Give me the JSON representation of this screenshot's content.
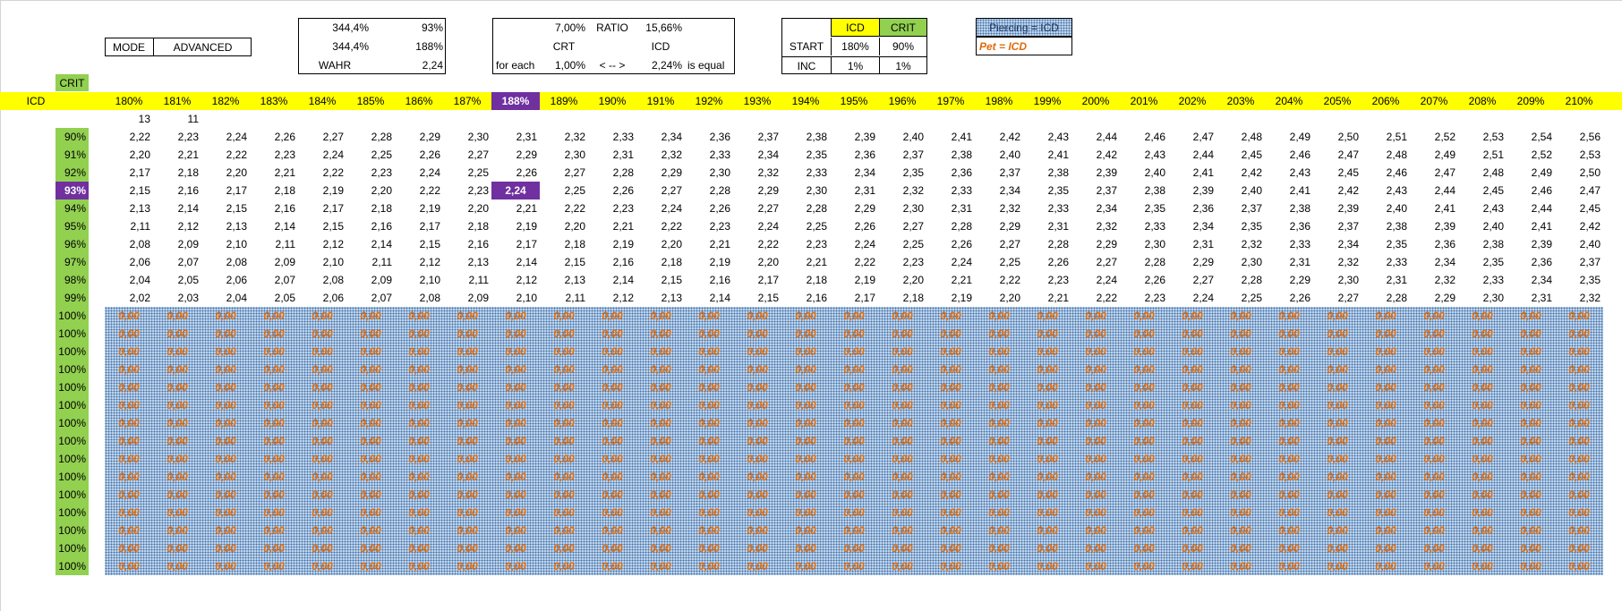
{
  "header": {
    "mode_label": "MODE",
    "mode_value": "ADVANCED",
    "stat_a1": "344,4%",
    "stat_a2": "344,4%",
    "stat_a3_label": "WAHR",
    "stat_b1": "93%",
    "stat_b2": "188%",
    "stat_b3": "2,24",
    "ratio_crt_val": "7,00%",
    "ratio_label": "RATIO",
    "ratio_icd_val": "15,66%",
    "crt_label": "CRT",
    "icd_label": "ICD",
    "for_each": "for each",
    "for_each_val": "1,00%",
    "arrow": "< -- >",
    "equal_val": "2,24%",
    "is_equal": "is equal",
    "icd_head": "ICD",
    "crit_head": "CRIT",
    "start_label": "START",
    "start_icd": "180%",
    "start_crit": "90%",
    "inc_label": "INC",
    "inc_icd": "1%",
    "inc_crit": "1%",
    "piercing_legend": "Piercing = ICD",
    "pet_legend": "Pet = ICD"
  },
  "grid": {
    "crit_title": "CRIT",
    "icd_title": "ICD",
    "icd_columns": [
      "180%",
      "181%",
      "182%",
      "183%",
      "184%",
      "185%",
      "186%",
      "187%",
      "188%",
      "189%",
      "190%",
      "191%",
      "192%",
      "193%",
      "194%",
      "195%",
      "196%",
      "197%",
      "198%",
      "199%",
      "200%",
      "201%",
      "202%",
      "203%",
      "204%",
      "205%",
      "206%",
      "207%",
      "208%",
      "209%",
      "210%"
    ],
    "highlight_col": 8,
    "highlight_row": 3,
    "counter_1": "13",
    "counter_2": "11",
    "crit_rows": [
      "90%",
      "91%",
      "92%",
      "93%",
      "94%",
      "95%",
      "96%",
      "97%",
      "98%",
      "99%"
    ],
    "values": [
      [
        "2,22",
        "2,23",
        "2,24",
        "2,26",
        "2,27",
        "2,28",
        "2,29",
        "2,30",
        "2,31",
        "2,32",
        "2,33",
        "2,34",
        "2,36",
        "2,37",
        "2,38",
        "2,39",
        "2,40",
        "2,41",
        "2,42",
        "2,43",
        "2,44",
        "2,46",
        "2,47",
        "2,48",
        "2,49",
        "2,50",
        "2,51",
        "2,52",
        "2,53",
        "2,54",
        "2,56"
      ],
      [
        "2,20",
        "2,21",
        "2,22",
        "2,23",
        "2,24",
        "2,25",
        "2,26",
        "2,27",
        "2,29",
        "2,30",
        "2,31",
        "2,32",
        "2,33",
        "2,34",
        "2,35",
        "2,36",
        "2,37",
        "2,38",
        "2,40",
        "2,41",
        "2,42",
        "2,43",
        "2,44",
        "2,45",
        "2,46",
        "2,47",
        "2,48",
        "2,49",
        "2,51",
        "2,52",
        "2,53"
      ],
      [
        "2,17",
        "2,18",
        "2,20",
        "2,21",
        "2,22",
        "2,23",
        "2,24",
        "2,25",
        "2,26",
        "2,27",
        "2,28",
        "2,29",
        "2,30",
        "2,32",
        "2,33",
        "2,34",
        "2,35",
        "2,36",
        "2,37",
        "2,38",
        "2,39",
        "2,40",
        "2,41",
        "2,42",
        "2,43",
        "2,45",
        "2,46",
        "2,47",
        "2,48",
        "2,49",
        "2,50"
      ],
      [
        "2,15",
        "2,16",
        "2,17",
        "2,18",
        "2,19",
        "2,20",
        "2,22",
        "2,23",
        "2,24",
        "2,25",
        "2,26",
        "2,27",
        "2,28",
        "2,29",
        "2,30",
        "2,31",
        "2,32",
        "2,33",
        "2,34",
        "2,35",
        "2,37",
        "2,38",
        "2,39",
        "2,40",
        "2,41",
        "2,42",
        "2,43",
        "2,44",
        "2,45",
        "2,46",
        "2,47"
      ],
      [
        "2,13",
        "2,14",
        "2,15",
        "2,16",
        "2,17",
        "2,18",
        "2,19",
        "2,20",
        "2,21",
        "2,22",
        "2,23",
        "2,24",
        "2,26",
        "2,27",
        "2,28",
        "2,29",
        "2,30",
        "2,31",
        "2,32",
        "2,33",
        "2,34",
        "2,35",
        "2,36",
        "2,37",
        "2,38",
        "2,39",
        "2,40",
        "2,41",
        "2,43",
        "2,44",
        "2,45"
      ],
      [
        "2,11",
        "2,12",
        "2,13",
        "2,14",
        "2,15",
        "2,16",
        "2,17",
        "2,18",
        "2,19",
        "2,20",
        "2,21",
        "2,22",
        "2,23",
        "2,24",
        "2,25",
        "2,26",
        "2,27",
        "2,28",
        "2,29",
        "2,31",
        "2,32",
        "2,33",
        "2,34",
        "2,35",
        "2,36",
        "2,37",
        "2,38",
        "2,39",
        "2,40",
        "2,41",
        "2,42"
      ],
      [
        "2,08",
        "2,09",
        "2,10",
        "2,11",
        "2,12",
        "2,14",
        "2,15",
        "2,16",
        "2,17",
        "2,18",
        "2,19",
        "2,20",
        "2,21",
        "2,22",
        "2,23",
        "2,24",
        "2,25",
        "2,26",
        "2,27",
        "2,28",
        "2,29",
        "2,30",
        "2,31",
        "2,32",
        "2,33",
        "2,34",
        "2,35",
        "2,36",
        "2,38",
        "2,39",
        "2,40"
      ],
      [
        "2,06",
        "2,07",
        "2,08",
        "2,09",
        "2,10",
        "2,11",
        "2,12",
        "2,13",
        "2,14",
        "2,15",
        "2,16",
        "2,18",
        "2,19",
        "2,20",
        "2,21",
        "2,22",
        "2,23",
        "2,24",
        "2,25",
        "2,26",
        "2,27",
        "2,28",
        "2,29",
        "2,30",
        "2,31",
        "2,32",
        "2,33",
        "2,34",
        "2,35",
        "2,36",
        "2,37"
      ],
      [
        "2,04",
        "2,05",
        "2,06",
        "2,07",
        "2,08",
        "2,09",
        "2,10",
        "2,11",
        "2,12",
        "2,13",
        "2,14",
        "2,15",
        "2,16",
        "2,17",
        "2,18",
        "2,19",
        "2,20",
        "2,21",
        "2,22",
        "2,23",
        "2,24",
        "2,26",
        "2,27",
        "2,28",
        "2,29",
        "2,30",
        "2,31",
        "2,32",
        "2,33",
        "2,34",
        "2,35"
      ],
      [
        "2,02",
        "2,03",
        "2,04",
        "2,05",
        "2,06",
        "2,07",
        "2,08",
        "2,09",
        "2,10",
        "2,11",
        "2,12",
        "2,13",
        "2,14",
        "2,15",
        "2,16",
        "2,17",
        "2,18",
        "2,19",
        "2,20",
        "2,21",
        "2,22",
        "2,23",
        "2,24",
        "2,25",
        "2,26",
        "2,27",
        "2,28",
        "2,29",
        "2,30",
        "2,31",
        "2,32"
      ]
    ],
    "overflow_crit_label": "100%",
    "overflow_value": "0,00",
    "overflow_row_count": 15
  },
  "colors": {
    "header_yellow": "#ffff00",
    "crit_green": "#92d050",
    "highlight_purple": "#7030a0",
    "overflow_blue": "#bdd7ee",
    "overflow_text_orange": "#e26b0a"
  }
}
